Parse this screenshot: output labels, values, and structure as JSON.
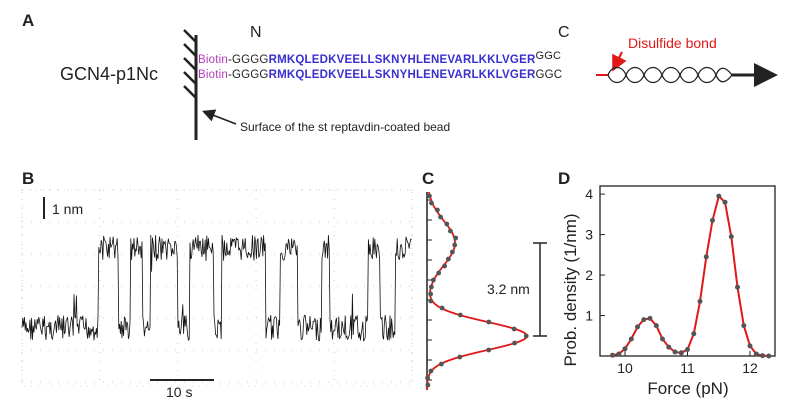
{
  "panels": {
    "a": "A",
    "b": "B",
    "c": "C",
    "d": "D"
  },
  "panel_a": {
    "construct_label": "GCN4-p1Nc",
    "n_label": "N",
    "c_label": "C",
    "biotin": "Biotin",
    "linker": "-GGGG",
    "sequence": "RMKQLEDKVEELLSKNYHLENEVARLKKLVGER",
    "tail_top": "GGC",
    "tail_bottom": "GGC",
    "disulfide_label": "Disulfide bond",
    "surface_label": "Surface of the st reptavdin-coated bead",
    "colors": {
      "biotin": "#b23ab8",
      "linker": "#222222",
      "hydrophobic": "#c03cc0",
      "polar": "#2f3cd8",
      "red": "#e01818"
    }
  },
  "panel_b": {
    "scale_y": "1 nm",
    "scale_x": "10 s"
  },
  "panel_c": {
    "distance_label": "3.2 nm"
  },
  "chart_data": {
    "type": "line",
    "title": "",
    "xlabel": "Force (pN)",
    "ylabel": "Prob. density (1/nm)",
    "xlim": [
      9.6,
      12.4
    ],
    "ylim": [
      0,
      4.2
    ],
    "x_ticks": [
      "10",
      "11",
      "12"
    ],
    "y_ticks": [
      "1",
      "2",
      "3",
      "4"
    ],
    "points": [
      [
        9.8,
        0.02
      ],
      [
        9.9,
        0.05
      ],
      [
        10.0,
        0.18
      ],
      [
        10.1,
        0.42
      ],
      [
        10.2,
        0.72
      ],
      [
        10.3,
        0.9
      ],
      [
        10.4,
        0.93
      ],
      [
        10.5,
        0.75
      ],
      [
        10.6,
        0.42
      ],
      [
        10.7,
        0.22
      ],
      [
        10.8,
        0.1
      ],
      [
        10.9,
        0.08
      ],
      [
        11.0,
        0.16
      ],
      [
        11.1,
        0.55
      ],
      [
        11.2,
        1.35
      ],
      [
        11.3,
        2.45
      ],
      [
        11.4,
        3.35
      ],
      [
        11.5,
        3.95
      ],
      [
        11.6,
        3.8
      ],
      [
        11.7,
        2.95
      ],
      [
        11.8,
        1.7
      ],
      [
        11.9,
        0.75
      ],
      [
        12.0,
        0.25
      ],
      [
        12.1,
        0.05
      ],
      [
        12.2,
        0.01
      ],
      [
        12.3,
        0.0
      ]
    ],
    "fit_color": "#e01818",
    "point_color": "#555555"
  }
}
